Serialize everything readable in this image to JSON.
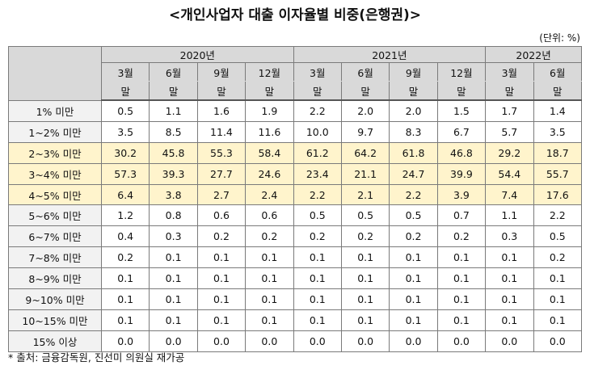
{
  "title": "<개인사업자 대출 이자율별 비중(은행권)>",
  "unit": "(단위: %)",
  "table": {
    "years": [
      {
        "label": "2020년",
        "span": 4
      },
      {
        "label": "2021년",
        "span": 4
      },
      {
        "label": "2022년",
        "span": 2
      }
    ],
    "columns": [
      {
        "month": "3월",
        "suffix": "말"
      },
      {
        "month": "6월",
        "suffix": "말"
      },
      {
        "month": "9월",
        "suffix": "말"
      },
      {
        "month": "12월",
        "suffix": "말"
      },
      {
        "month": "3월",
        "suffix": "말"
      },
      {
        "month": "6월",
        "suffix": "말"
      },
      {
        "month": "9월",
        "suffix": "말"
      },
      {
        "month": "12월",
        "suffix": "말"
      },
      {
        "month": "3월",
        "suffix": "말"
      },
      {
        "month": "6월",
        "suffix": "말"
      }
    ],
    "rows": [
      {
        "label": "1% 미만",
        "values": [
          "0.5",
          "1.1",
          "1.6",
          "1.9",
          "2.2",
          "2.0",
          "2.0",
          "1.5",
          "1.7",
          "1.4"
        ]
      },
      {
        "label": "1~2% 미만",
        "values": [
          "3.5",
          "8.5",
          "11.4",
          "11.6",
          "10.0",
          "9.7",
          "8.3",
          "6.7",
          "5.7",
          "3.5"
        ]
      },
      {
        "label": "2~3% 미만",
        "values": [
          "30.2",
          "45.8",
          "55.3",
          "58.4",
          "61.2",
          "64.2",
          "61.8",
          "46.8",
          "29.2",
          "18.7"
        ]
      },
      {
        "label": "3~4% 미만",
        "values": [
          "57.3",
          "39.3",
          "27.7",
          "24.6",
          "23.4",
          "21.1",
          "24.7",
          "39.9",
          "54.4",
          "55.7"
        ]
      },
      {
        "label": "4~5% 미만",
        "values": [
          "6.4",
          "3.8",
          "2.7",
          "2.4",
          "2.2",
          "2.1",
          "2.2",
          "3.9",
          "7.4",
          "17.6"
        ]
      },
      {
        "label": "5~6% 미만",
        "values": [
          "1.2",
          "0.8",
          "0.6",
          "0.6",
          "0.5",
          "0.5",
          "0.5",
          "0.7",
          "1.1",
          "2.2"
        ]
      },
      {
        "label": "6~7% 미만",
        "values": [
          "0.4",
          "0.3",
          "0.2",
          "0.2",
          "0.2",
          "0.2",
          "0.2",
          "0.2",
          "0.3",
          "0.5"
        ]
      },
      {
        "label": "7~8% 미만",
        "values": [
          "0.2",
          "0.1",
          "0.1",
          "0.1",
          "0.1",
          "0.1",
          "0.1",
          "0.1",
          "0.1",
          "0.2"
        ]
      },
      {
        "label": "8~9% 미만",
        "values": [
          "0.1",
          "0.1",
          "0.1",
          "0.1",
          "0.1",
          "0.1",
          "0.1",
          "0.1",
          "0.1",
          "0.1"
        ]
      },
      {
        "label": "9~10% 미만",
        "values": [
          "0.1",
          "0.1",
          "0.1",
          "0.1",
          "0.1",
          "0.1",
          "0.1",
          "0.1",
          "0.1",
          "0.1"
        ]
      },
      {
        "label": "10~15% 미만",
        "values": [
          "0.1",
          "0.1",
          "0.1",
          "0.1",
          "0.1",
          "0.1",
          "0.1",
          "0.1",
          "0.1",
          "0.1"
        ]
      },
      {
        "label": "15% 이상",
        "values": [
          "0.0",
          "0.0",
          "0.0",
          "0.0",
          "0.0",
          "0.0",
          "0.0",
          "0.0",
          "0.0",
          "0.0"
        ]
      }
    ]
  },
  "footnote": "* 출처: 금융감독원, 진선미 의원실 재가공"
}
